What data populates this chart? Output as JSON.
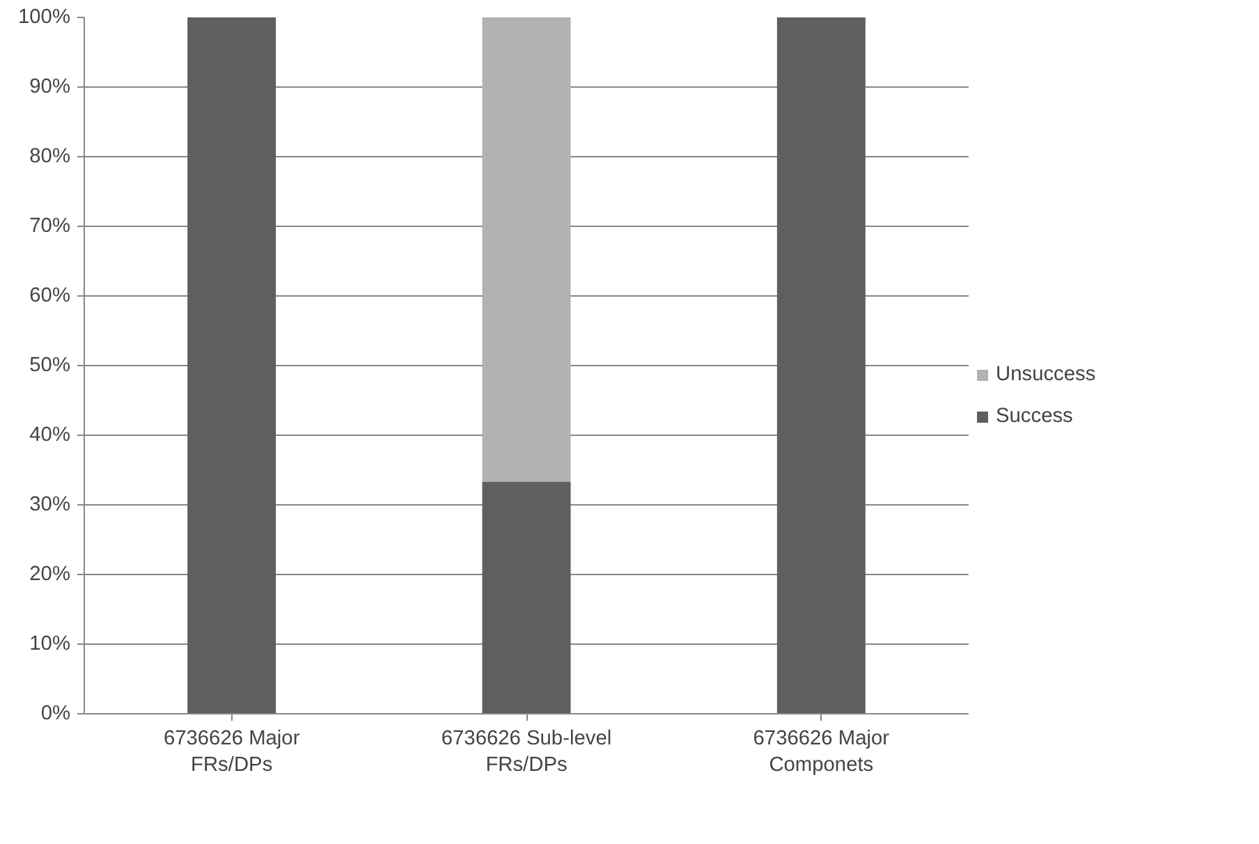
{
  "chart_data": {
    "type": "bar",
    "stacked": true,
    "categories": [
      "6736626 Major FRs/DPs",
      "6736626 Sub-level FRs/DPs",
      "6736626 Major Componets"
    ],
    "series": [
      {
        "name": "Success",
        "color": "#5f5f5f",
        "values": [
          100,
          33.3,
          100
        ]
      },
      {
        "name": "Unsuccess",
        "color": "#b2b2b2",
        "values": [
          0,
          66.7,
          0
        ]
      }
    ],
    "ylim": [
      0,
      100
    ],
    "yticks": [
      {
        "value": 0,
        "label": "0%"
      },
      {
        "value": 10,
        "label": "10%"
      },
      {
        "value": 20,
        "label": "20%"
      },
      {
        "value": 30,
        "label": "30%"
      },
      {
        "value": 40,
        "label": "40%"
      },
      {
        "value": 50,
        "label": "50%"
      },
      {
        "value": 60,
        "label": "60%"
      },
      {
        "value": 70,
        "label": "70%"
      },
      {
        "value": 80,
        "label": "80%"
      },
      {
        "value": 90,
        "label": "90%"
      },
      {
        "value": 100,
        "label": "100%"
      }
    ],
    "grid": "y",
    "legend": "right"
  }
}
